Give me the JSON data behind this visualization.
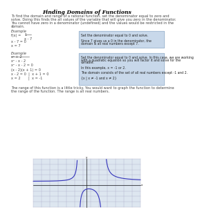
{
  "title": "Finding Domains of Functions",
  "intro_text": "To find the domain and range of a rational function, set the denominator equal to zero and\nsolve. Doing this finds the all values of the variable that will give you zero in the denominator.\nYou cannot have zero in a denominator (undefined) and the values would be restricted in the\ndomain.",
  "example1_label": "Example",
  "box1_line1": "Set the denominator equal to 0 and solve.",
  "box1_line2": "",
  "box1_line3": "Since 7 gives us a 0 in the denominator, the",
  "box1_line4": "domain is all real numbers except 7.",
  "example2_label": "Example",
  "box2_line1": "Set the denominator equal to 0 and solve. In this case, we are working",
  "box2_line2": "with a quadratic equation so you will factor it and solve for the",
  "box2_line3": "variable.",
  "box2_line4": "",
  "box2_line5": "In this example, x = -1 or 2.",
  "box2_line6": "",
  "box2_line7": "The domain consists of the set of all real numbers except -1 and 2.",
  "box2_line8": "",
  "box2_line9": "{x | x ≠ -1 and x ≠ 2}",
  "outro_line1": "The range of this function is a little tricky. You would want to graph the function to determine",
  "outro_line2": "the range of the function. The range is all real numbers.",
  "bg_color": "#ffffff",
  "box1_color": "#c8d8ea",
  "box2_color": "#c8d8ea",
  "title_color": "#000000",
  "text_color": "#444444",
  "graph_line_color": "#3333bb",
  "graph_bg": "#dde6f0",
  "grid_color": "#9999bb"
}
